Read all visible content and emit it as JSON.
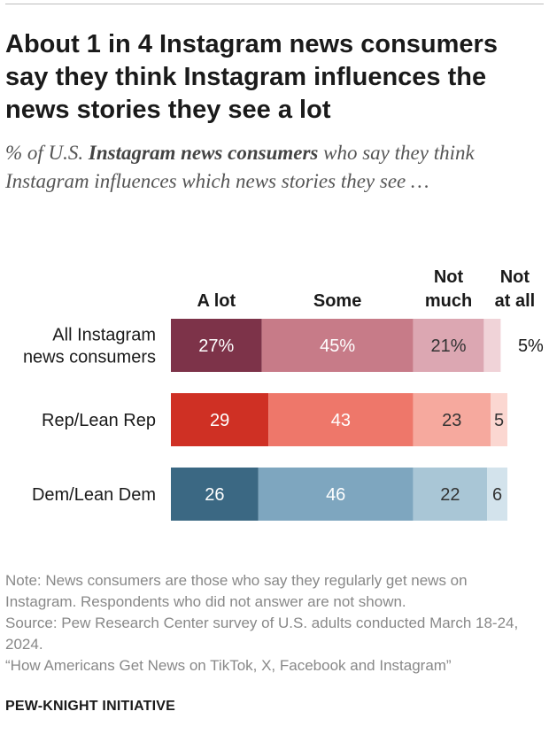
{
  "header": {
    "title": "About 1 in 4 Instagram news consumers say they think Instagram influences the news stories they see a lot",
    "subtitle_prefix": "% of U.S. ",
    "subtitle_emphasis": "Instagram news consumers",
    "subtitle_suffix": " who say they think Instagram influences which news stories they see …"
  },
  "chart_data": {
    "type": "bar",
    "orientation": "horizontal",
    "stacked": true,
    "categories": [
      "All Instagram news consumers",
      "Rep/Lean Rep",
      "Dem/Lean Dem"
    ],
    "category_label_lines": [
      [
        "All Instagram",
        "news consumers"
      ],
      [
        "Rep/Lean Rep"
      ],
      [
        "Dem/Lean Dem"
      ]
    ],
    "series": [
      {
        "name": "A lot",
        "header_lines": [
          "A lot"
        ],
        "values": [
          27,
          29,
          26
        ],
        "labels": [
          "27%",
          "29",
          "26"
        ]
      },
      {
        "name": "Some",
        "header_lines": [
          "Some"
        ],
        "values": [
          45,
          43,
          46
        ],
        "labels": [
          "45%",
          "43",
          "46"
        ]
      },
      {
        "name": "Not much",
        "header_lines": [
          "Not",
          "much"
        ],
        "values": [
          21,
          23,
          22
        ],
        "labels": [
          "21%",
          "23",
          "22"
        ]
      },
      {
        "name": "Not at all",
        "header_lines": [
          "Not",
          "at all"
        ],
        "values": [
          5,
          5,
          6
        ],
        "labels": [
          "5%",
          "5",
          "6"
        ]
      }
    ],
    "colors": [
      [
        "#7d3349",
        "#c77b88",
        "#dca7b2",
        "#f0d3d8"
      ],
      [
        "#cf3024",
        "#ee776a",
        "#f6a99e",
        "#fbd7d1"
      ],
      [
        "#3b6883",
        "#7ea6bf",
        "#a9c6d6",
        "#d3e3ec"
      ]
    ],
    "label_colors": [
      "#ffffff",
      "#ffffff",
      "#333333",
      "#333333"
    ],
    "xlim": [
      0,
      100
    ]
  },
  "footer": {
    "note": "Note: News consumers are those who say they regularly get news on Instagram. Respondents who did not answer are not shown.",
    "source": "Source: Pew Research Center survey of U.S. adults conducted March 18-24, 2024.",
    "report": "“How Americans Get News on TikTok, X, Facebook and Instagram”",
    "brand": "PEW-KNIGHT INITIATIVE"
  }
}
